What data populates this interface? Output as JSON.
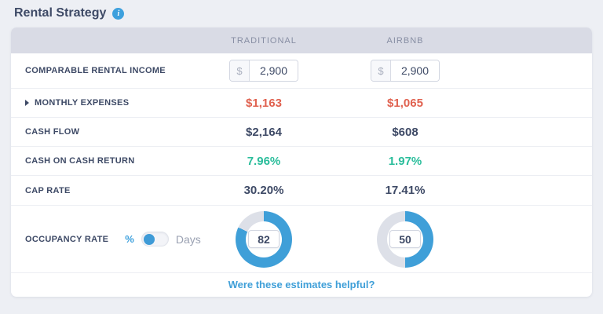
{
  "title": "Rental Strategy",
  "columns": {
    "traditional": "TRADITIONAL",
    "airbnb": "AIRBNB"
  },
  "rows": {
    "income": {
      "label": "COMPARABLE RENTAL INCOME",
      "currency": "$",
      "traditional": "2,900",
      "airbnb": "2,900"
    },
    "expenses": {
      "label": "MONTHLY EXPENSES",
      "traditional": "$1,163",
      "airbnb": "$1,065"
    },
    "cash_flow": {
      "label": "CASH FLOW",
      "traditional": "$2,164",
      "airbnb": "$608"
    },
    "coc_return": {
      "label": "CASH ON CASH RETURN",
      "traditional": "7.96%",
      "airbnb": "1.97%"
    },
    "cap_rate": {
      "label": "CAP RATE",
      "traditional": "30.20%",
      "airbnb": "17.41%"
    },
    "occupancy": {
      "label": "OCCUPANCY RATE",
      "unit_percent": "%",
      "unit_days": "Days",
      "selected_unit": "%",
      "traditional": "82",
      "airbnb": "50"
    }
  },
  "footer": {
    "link_label": "Were these estimates helpful?"
  },
  "icons": {
    "info": "info-icon",
    "expand": "chevron-right-icon"
  },
  "colors": {
    "accent_blue": "#3f9fd8",
    "donut_track": "#dde0e8",
    "negative_red": "#e0614f",
    "positive_green": "#2abd9b",
    "header_bg": "#d9dbe5",
    "text_dark": "#3e4a66",
    "page_bg": "#edeff4"
  }
}
